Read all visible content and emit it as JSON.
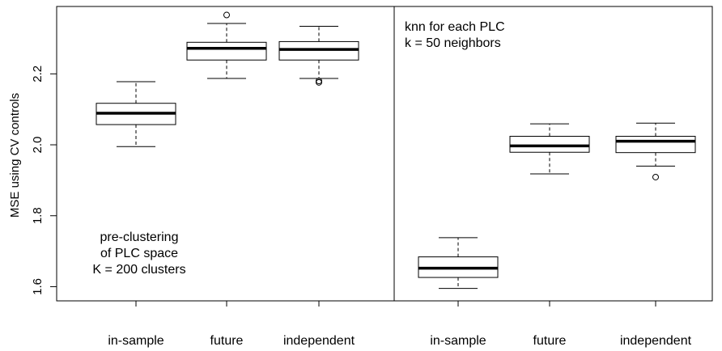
{
  "chart_data": {
    "type": "box",
    "ylabel": "MSE using CV controls",
    "ylim": [
      1.56,
      2.39
    ],
    "y_ticks": [
      1.6,
      1.8,
      2.0,
      2.2
    ],
    "y_tick_labels": [
      "1.6",
      "1.8",
      "2.0",
      "2.2"
    ],
    "grid": false,
    "panels": [
      {
        "annotation": [
          "pre-clustering",
          "of PLC space",
          "K = 200 clusters"
        ],
        "boxes": [
          {
            "category": "in-sample",
            "whisker_low": 1.995,
            "q1": 2.057,
            "median": 2.089,
            "q3": 2.117,
            "whisker_high": 2.178,
            "outliers": []
          },
          {
            "category": "future",
            "whisker_low": 2.187,
            "q1": 2.239,
            "median": 2.272,
            "q3": 2.289,
            "whisker_high": 2.342,
            "outliers": [
              2.366
            ]
          },
          {
            "category": "independent",
            "whisker_low": 2.187,
            "q1": 2.239,
            "median": 2.269,
            "q3": 2.291,
            "whisker_high": 2.334,
            "outliers": [
              2.176,
              2.18
            ]
          }
        ]
      },
      {
        "annotation": [
          "knn for each PLC",
          "k = 50 neighbors"
        ],
        "boxes": [
          {
            "category": "in-sample",
            "whisker_low": 1.595,
            "q1": 1.626,
            "median": 1.652,
            "q3": 1.684,
            "whisker_high": 1.738,
            "outliers": []
          },
          {
            "category": "future",
            "whisker_low": 1.918,
            "q1": 1.979,
            "median": 1.997,
            "q3": 2.024,
            "whisker_high": 2.059,
            "outliers": []
          },
          {
            "category": "independent",
            "whisker_low": 1.94,
            "q1": 1.978,
            "median": 2.01,
            "q3": 2.024,
            "whisker_high": 2.061,
            "outliers": [
              1.909
            ]
          }
        ]
      }
    ]
  }
}
